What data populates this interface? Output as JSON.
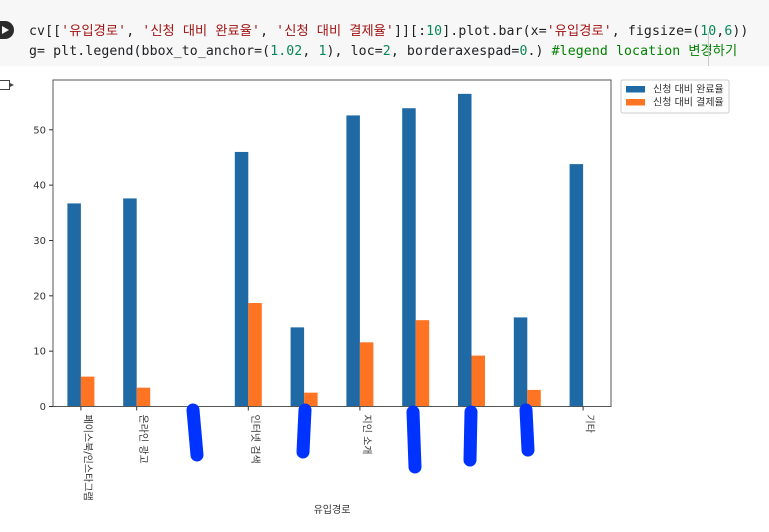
{
  "code_cell": {
    "run_button": "run-cell",
    "line1_parts": [
      {
        "t": "cv[[",
        "c": ""
      },
      {
        "t": "'유입경로'",
        "c": "str"
      },
      {
        "t": ", ",
        "c": ""
      },
      {
        "t": "'신청 대비 완료율'",
        "c": "str"
      },
      {
        "t": ", ",
        "c": ""
      },
      {
        "t": "'신청 대비 결제율'",
        "c": "str"
      },
      {
        "t": "]][:",
        "c": ""
      },
      {
        "t": "10",
        "c": "num"
      },
      {
        "t": "].plot.bar(x=",
        "c": ""
      },
      {
        "t": "'유입경로'",
        "c": "str"
      },
      {
        "t": ", figsize=(",
        "c": ""
      },
      {
        "t": "10",
        "c": "num"
      },
      {
        "t": ",",
        "c": ""
      },
      {
        "t": "6",
        "c": "num"
      },
      {
        "t": "))",
        "c": ""
      }
    ],
    "line2_parts": [
      {
        "t": "g= plt.legend(bbox_to_anchor=(",
        "c": ""
      },
      {
        "t": "1.02",
        "c": "num"
      },
      {
        "t": ", ",
        "c": ""
      },
      {
        "t": "1",
        "c": "num"
      },
      {
        "t": "), loc=",
        "c": ""
      },
      {
        "t": "2",
        "c": "num"
      },
      {
        "t": ", borderaxespad=",
        "c": ""
      },
      {
        "t": "0",
        "c": "num"
      },
      {
        "t": ".) ",
        "c": ""
      },
      {
        "t": "#legend location 변경하기",
        "c": "com"
      }
    ]
  },
  "colors": {
    "series1": "#1f6aa5",
    "series2": "#ff7422",
    "annotation_marks": "#0033ff"
  },
  "chart_data": {
    "type": "bar",
    "title": "",
    "xlabel": "유입경로",
    "ylabel": "",
    "categories": [
      "페이스북/인스타그램",
      "온라인 광고",
      "",
      "인터넷 검색",
      "",
      "지인 소개",
      "",
      "",
      "",
      "기타"
    ],
    "categories_note": "labels at positions 3,5,7,8,9 are obscured by blue hand-drawn marks",
    "series": [
      {
        "name": "신청 대비 완료율",
        "color": "#1f6aa5",
        "values": [
          36.7,
          37.6,
          0,
          46.0,
          14.3,
          52.6,
          53.9,
          56.5,
          16.1,
          43.8
        ]
      },
      {
        "name": "신청 대비 결제율",
        "color": "#ff7422",
        "values": [
          5.4,
          3.4,
          0,
          18.7,
          2.5,
          11.6,
          15.6,
          9.2,
          3.0,
          0
        ]
      }
    ],
    "yticks": [
      0,
      10,
      20,
      30,
      40,
      50
    ],
    "ylim": [
      0,
      59
    ],
    "grid": false,
    "legend_position": "outside upper right",
    "legend": [
      "신청 대비 완료율",
      "신청 대비 결제율"
    ]
  }
}
